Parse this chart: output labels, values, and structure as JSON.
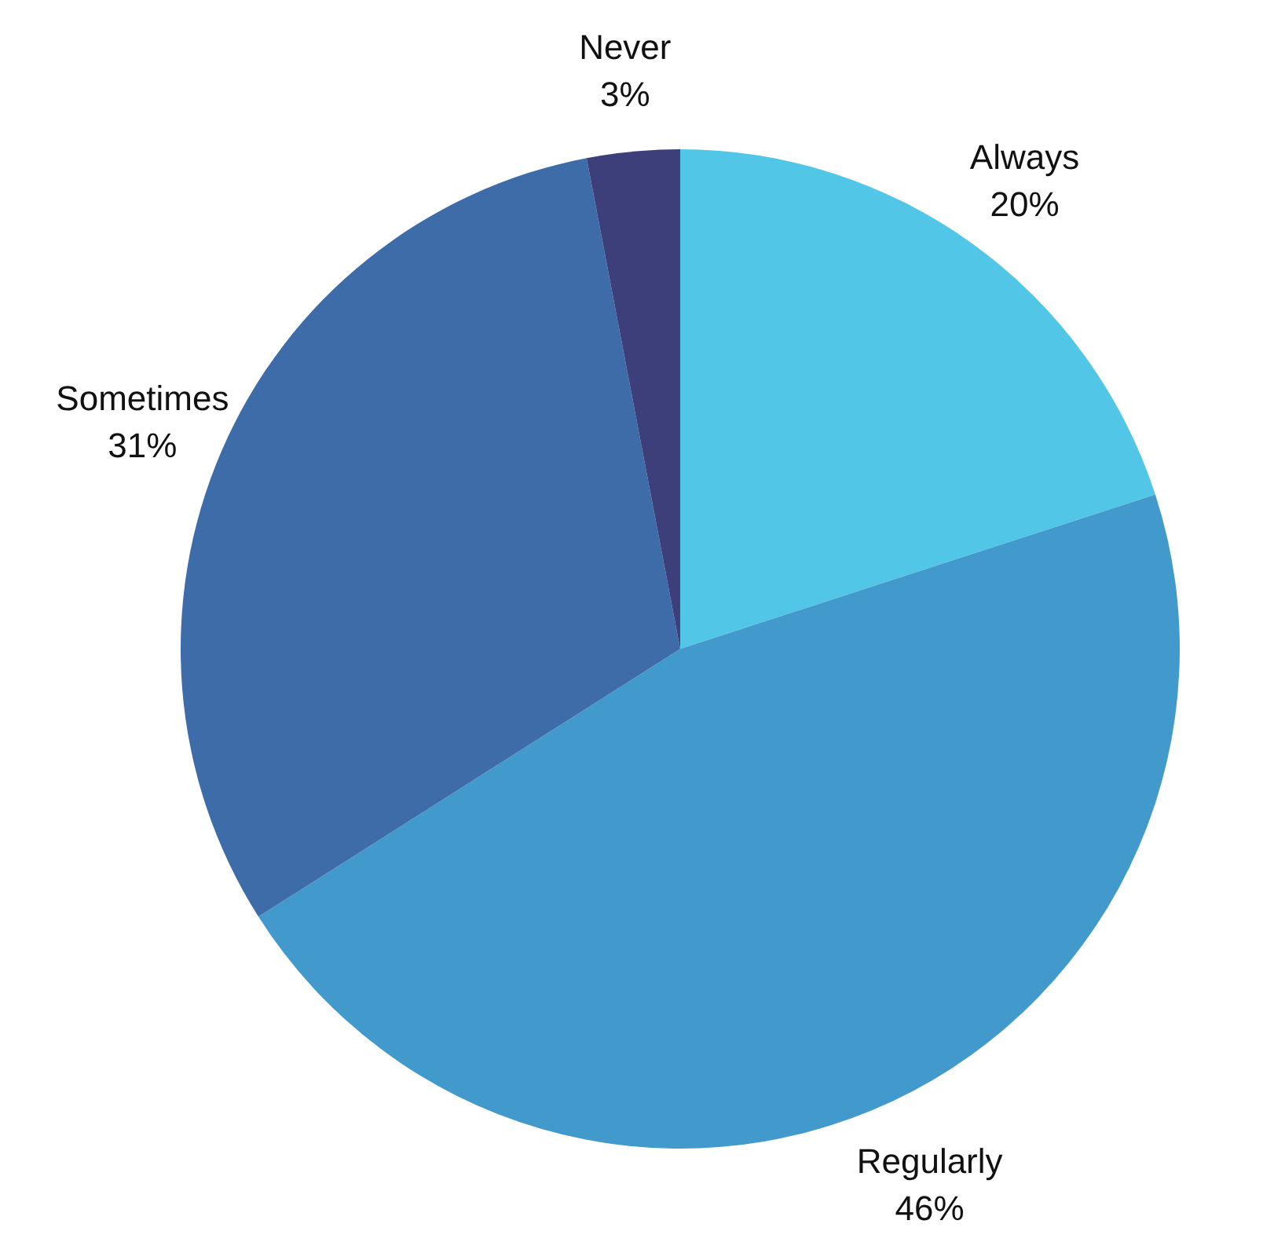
{
  "chart_data": {
    "type": "pie",
    "categories": [
      "Always",
      "Regularly",
      "Sometimes",
      "Never"
    ],
    "values": [
      20,
      46,
      31,
      3
    ],
    "colors": [
      "#52c6e6",
      "#4299cc",
      "#3d6ca8",
      "#3d3f7a"
    ],
    "value_labels": [
      "20%",
      "46%",
      "31%",
      "3%"
    ]
  }
}
